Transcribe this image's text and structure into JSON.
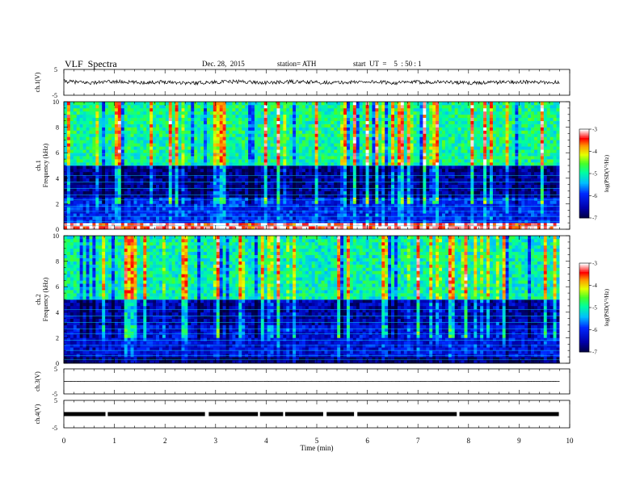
{
  "header": {
    "title": "VLF  Spectra",
    "date": "Dec. 28,  2015",
    "station": "station= ATH",
    "start_ut": "start  UT  =    5  : 50 : 1"
  },
  "chart_data": [
    {
      "type": "line",
      "panel": "ch1-waveform",
      "ylabel": "ch.1(V)",
      "ylim": [
        -5,
        5
      ],
      "yticks": [
        "5",
        "-5"
      ],
      "x": [
        0.0,
        0.5,
        1.0,
        1.5,
        2.0,
        2.5,
        3.0,
        3.5,
        4.0,
        4.5,
        5.0,
        5.5,
        6.0,
        6.5,
        7.0,
        7.5,
        8.0,
        8.5,
        9.0,
        9.5,
        9.8
      ],
      "values": [
        0.4,
        -0.2,
        0.3,
        -0.1,
        0.2,
        -0.3,
        0.1,
        0.3,
        -0.2,
        0.2,
        0.0,
        -0.1,
        0.3,
        -0.2,
        0.1,
        0.2,
        -0.3,
        0.0,
        0.2,
        -0.1,
        0.1
      ]
    },
    {
      "type": "heatmap",
      "panel": "ch1-spectrogram",
      "ylabel_top": "ch.1",
      "ylabel": "Frequency  (kHz)",
      "ylim": [
        0,
        10
      ],
      "yticks": [
        "0",
        "2",
        "4",
        "6",
        "8",
        "10"
      ],
      "colorbar": {
        "label": "log(PSD(V²/Hz)",
        "range": [
          -7,
          -3
        ],
        "ticks": [
          "-3",
          "-4",
          "-5",
          "-6",
          "-7"
        ]
      },
      "description_bands_khz": [
        {
          "range": [
            0,
            0.5
          ],
          "level": -3.2
        },
        {
          "range": [
            0.5,
            2.5
          ],
          "level": -6.0
        },
        {
          "range": [
            2.5,
            5.0
          ],
          "level": -6.6
        },
        {
          "range": [
            5.0,
            10.0
          ],
          "level": -4.9
        }
      ]
    },
    {
      "type": "heatmap",
      "panel": "ch2-spectrogram",
      "ylabel_top": "ch.2",
      "ylabel": "Frequency  (kHz)",
      "ylim": [
        0,
        10
      ],
      "yticks": [
        "0",
        "2",
        "4",
        "6",
        "8",
        "10"
      ],
      "colorbar": {
        "label": "log(PSD(V²/Hz)",
        "range": [
          -7,
          -3
        ],
        "ticks": [
          "-3",
          "-4",
          "-5",
          "-6",
          "-7"
        ]
      },
      "description_bands_khz": [
        {
          "range": [
            0,
            0.5
          ],
          "level": -6.8
        },
        {
          "range": [
            0.5,
            3.0
          ],
          "level": -6.2
        },
        {
          "range": [
            3.0,
            5.0
          ],
          "level": -6.5
        },
        {
          "range": [
            5.0,
            10.0
          ],
          "level": -5.0
        }
      ]
    },
    {
      "type": "line",
      "panel": "ch3-waveform",
      "ylabel": "ch.3(V)",
      "ylim": [
        -5,
        5
      ],
      "yticks": [
        "5",
        "-5"
      ],
      "x": [
        0,
        9.8
      ],
      "values": [
        0,
        0
      ]
    },
    {
      "type": "line",
      "panel": "ch4-waveform",
      "ylabel": "ch.4(V)",
      "ylim": [
        -5,
        5
      ],
      "yticks": [
        "5",
        "-5"
      ],
      "x": [
        0,
        9.8
      ],
      "values": [
        0,
        0
      ]
    }
  ],
  "xaxis": {
    "xlabel": "Time  (min)",
    "xlim": [
      0,
      10
    ],
    "ticks": [
      "0",
      "1",
      "2",
      "3",
      "4",
      "5",
      "6",
      "7",
      "8",
      "9",
      "10"
    ]
  },
  "colors": {
    "waveform": "#000000",
    "cmap": [
      "#000060",
      "#0000ff",
      "#00c0ff",
      "#00ff80",
      "#ffff00",
      "#ff0000",
      "#ffffff"
    ]
  }
}
